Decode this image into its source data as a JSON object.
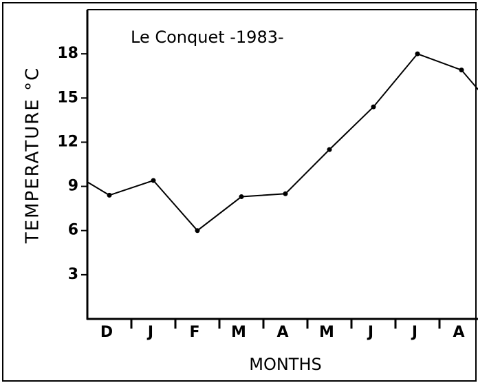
{
  "chart_data": {
    "type": "line",
    "title": "Le Conquet -1983-",
    "y_label": "TEMPERATURE °C",
    "x_label": "MONTHS",
    "categories": [
      null,
      "D",
      "J",
      "F",
      "M",
      "A",
      "M",
      "J",
      "J",
      "A",
      null
    ],
    "series": [
      {
        "color": "#000000",
        "values": [
          10.2,
          8.4,
          9.4,
          6.0,
          8.3,
          8.5,
          11.5,
          14.4,
          18.0,
          16.9,
          13.4
        ]
      }
    ],
    "ylim": [
      0,
      21
    ],
    "yticks": [
      3,
      6,
      9,
      12,
      15,
      18
    ]
  }
}
